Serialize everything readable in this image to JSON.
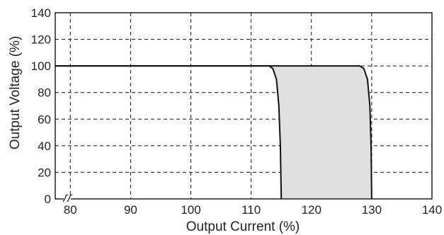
{
  "chart_data": {
    "type": "area",
    "title": "",
    "xlabel": "Output Current (%)",
    "ylabel": "Output Voltage (%)",
    "xlim": [
      77.5,
      140
    ],
    "ylim": [
      0,
      140
    ],
    "x_ticks": [
      80,
      90,
      100,
      110,
      120,
      130,
      140
    ],
    "x_tick_labels": [
      "80",
      "90",
      "100",
      "110",
      "120",
      "130",
      "140"
    ],
    "y_ticks": [
      0,
      20,
      40,
      60,
      80,
      100,
      120,
      140
    ],
    "y_tick_labels": [
      "0",
      "20",
      "40",
      "60",
      "80",
      "100",
      "120",
      "140"
    ],
    "x_axis_break_at": 77.5,
    "grid": true,
    "grid_style": "dashed",
    "legend": "none",
    "series": [
      {
        "values": [
          {
            "x": 77.5,
            "y": 100
          },
          {
            "x": 113,
            "y": 100
          },
          {
            "x": 113.6,
            "y": 98
          },
          {
            "x": 114.2,
            "y": 90
          },
          {
            "x": 114.6,
            "y": 70
          },
          {
            "x": 114.85,
            "y": 40
          },
          {
            "x": 115,
            "y": 0
          }
        ]
      },
      {
        "values": [
          {
            "x": 77.5,
            "y": 100
          },
          {
            "x": 128,
            "y": 100
          },
          {
            "x": 128.7,
            "y": 98
          },
          {
            "x": 129.3,
            "y": 90
          },
          {
            "x": 129.7,
            "y": 70
          },
          {
            "x": 129.9,
            "y": 40
          },
          {
            "x": 130,
            "y": 0
          }
        ]
      }
    ],
    "fill_between_series": true,
    "colors": {
      "line": "#111111",
      "fill": "#e0e0e0",
      "grid": "#111111",
      "axis": "#111111"
    }
  }
}
